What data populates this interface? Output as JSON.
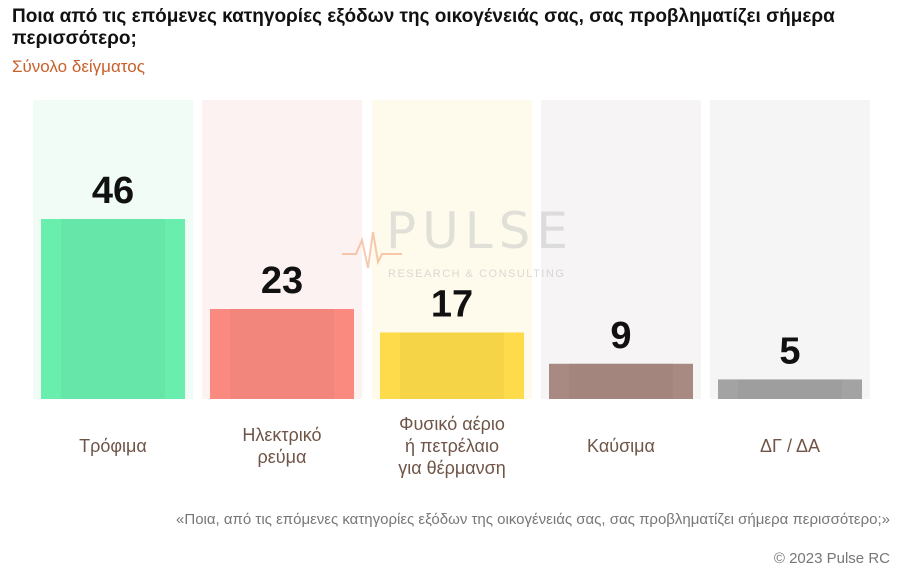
{
  "header": {
    "title": "Ποια από τις επόμενες κατηγορίες εξόδων της οικογένειάς σας, σας προβληματίζει σήμερα περισσότερο;",
    "subtitle": "Σύνολο δείγματος"
  },
  "chart_data": {
    "type": "bar",
    "categories": [
      [
        "Τρόφιμα"
      ],
      [
        "Ηλεκτρικό",
        "ρεύμα"
      ],
      [
        "Φυσικό αέριο",
        "ή πετρέλαιο",
        "για θέρμανση"
      ],
      [
        "Καύσιμα"
      ],
      [
        "ΔΓ / ΔΑ"
      ]
    ],
    "values": [
      46,
      23,
      17,
      9,
      5
    ],
    "colors": [
      "#6aeeae",
      "#fa8a80",
      "#fddb4a",
      "#a88a82",
      "#a3a3a3"
    ],
    "background_colors": [
      "#f1fcf6",
      "#fdf2f2",
      "#fefbec",
      "#f6f4f4",
      "#f5f5f5"
    ],
    "ylim": [
      0,
      46
    ]
  },
  "watermark": {
    "word": "PULSE",
    "sub": "RESEARCH & CONSULTING"
  },
  "footer": {
    "note": "«Ποια, από τις επόμενες κατηγορίες εξόδων της οικογένειάς σας, σας προβληματίζει σήμερα περισσότερο;»",
    "copyright": "© 2023 Pulse RC"
  }
}
